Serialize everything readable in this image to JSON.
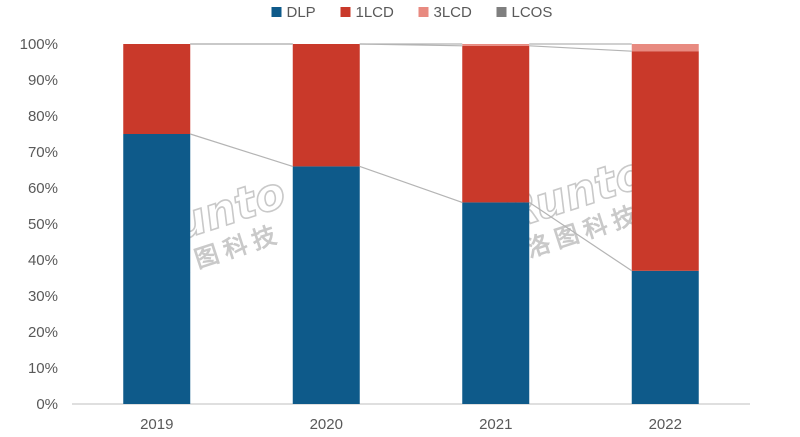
{
  "chart_data": {
    "type": "bar",
    "stacked": true,
    "percent_stacked": true,
    "categories": [
      "2019",
      "2020",
      "2021",
      "2022"
    ],
    "series": [
      {
        "name": "DLP",
        "color": "#0e5a8a",
        "values": [
          75,
          66,
          56,
          37
        ]
      },
      {
        "name": "1LCD",
        "color": "#c9392a",
        "values": [
          25,
          34,
          43.5,
          61
        ]
      },
      {
        "name": "3LCD",
        "color": "#e88a80",
        "values": [
          0,
          0,
          0.5,
          2
        ]
      },
      {
        "name": "LCOS",
        "color": "#7f7f7f",
        "values": [
          0,
          0,
          0,
          0
        ]
      }
    ],
    "y_ticks": [
      "0%",
      "10%",
      "20%",
      "30%",
      "40%",
      "50%",
      "60%",
      "70%",
      "80%",
      "90%",
      "100%"
    ],
    "ylim": [
      0,
      100
    ],
    "title": "",
    "xlabel": "",
    "ylabel": "",
    "grid": false,
    "series_lines": true,
    "legend_position": "top-center"
  },
  "watermarks": [
    {
      "latin": "Runto",
      "cjk": "洛图科技"
    },
    {
      "latin": "Runto",
      "cjk": "洛图科技"
    }
  ]
}
